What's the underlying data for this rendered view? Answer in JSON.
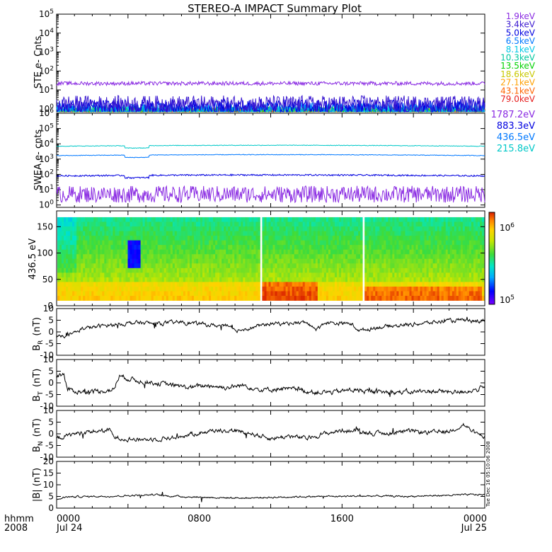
{
  "title": "STEREO-A IMPACT Summary Plot",
  "timestamp": "Tue Dec 16 05:10:06 2008",
  "time_axis": {
    "corner_top": "hhmm",
    "corner_bottom": "2008",
    "ticks": [
      {
        "t": 0,
        "label": "0000",
        "sub": "Jul 24"
      },
      {
        "t": 8,
        "label": "0800",
        "sub": ""
      },
      {
        "t": 16,
        "label": "1600",
        "sub": ""
      },
      {
        "t": 24,
        "label": "0000",
        "sub": "Jul 25"
      }
    ]
  },
  "chart_data": [
    {
      "type": "line",
      "id": "ste",
      "ylabel": "STE e- Cnts",
      "yscale": "log",
      "ylim": [
        0.7,
        100000
      ],
      "y_ticks": [
        {
          "v": 1,
          "exp": "0"
        },
        {
          "v": 10,
          "exp": "1"
        },
        {
          "v": 100,
          "exp": "2"
        },
        {
          "v": 1000,
          "exp": "3"
        },
        {
          "v": 10000,
          "exp": "4"
        },
        {
          "v": 100000,
          "exp": "5"
        }
      ],
      "series": [
        {
          "name": "1.9keV",
          "color": "#8a2be2",
          "level": 22,
          "noise": 0.1
        },
        {
          "name": "3.4keV",
          "color": "#3a18d0",
          "level": 1.8,
          "noise": 0.45
        },
        {
          "name": "5.0keV",
          "color": "#0000e0",
          "level": 1.3,
          "noise": 0.4
        },
        {
          "name": "6.5keV",
          "color": "#0078ff",
          "level": 1.0,
          "noise": 0.35
        },
        {
          "name": "8.1keV",
          "color": "#00c8e6",
          "level": 0.9,
          "noise": 0.3
        },
        {
          "name": "10.3keV",
          "color": "#00c8a0",
          "level": 0.85,
          "noise": 0.25
        },
        {
          "name": "13.5keV",
          "color": "#00d200",
          "level": 0.8,
          "noise": 0.2
        },
        {
          "name": "18.6keV",
          "color": "#c8c800",
          "level": 0.78,
          "noise": 0.2
        },
        {
          "name": "27.1keV",
          "color": "#ffa000",
          "level": 0.76,
          "noise": 0.2
        },
        {
          "name": "43.1keV",
          "color": "#ff6400",
          "level": 0.75,
          "noise": 0.2
        },
        {
          "name": "79.0keV",
          "color": "#e61e1e",
          "level": 0.74,
          "noise": 0.2
        }
      ]
    },
    {
      "type": "line",
      "id": "swea",
      "ylabel": "SWEA e- cnts",
      "yscale": "log",
      "ylim": [
        0.7,
        1000000
      ],
      "y_ticks": [
        {
          "v": 1,
          "exp": "0"
        },
        {
          "v": 10,
          "exp": "1"
        },
        {
          "v": 100,
          "exp": "2"
        },
        {
          "v": 1000,
          "exp": "3"
        },
        {
          "v": 10000,
          "exp": "4"
        },
        {
          "v": 100000,
          "exp": "5"
        },
        {
          "v": 1000000,
          "exp": "6"
        }
      ],
      "series": [
        {
          "name": "1787.2eV",
          "color": "#8a2be2",
          "level": 5,
          "noise": 0.55
        },
        {
          "name": "883.3eV",
          "color": "#0000e0",
          "level": 80,
          "noise": 0.05
        },
        {
          "name": "436.5eV",
          "color": "#0078ff",
          "level": 1700,
          "noise": 0.02
        },
        {
          "name": "215.8eV",
          "color": "#00c8c8",
          "level": 7000,
          "noise": 0.02
        }
      ]
    },
    {
      "type": "heatmap",
      "id": "pad",
      "ylabel": "436.5 eV",
      "ylim": [
        0,
        180
      ],
      "y_ticks": [
        0,
        50,
        100,
        150
      ],
      "colorbar": {
        "min_label_base": "10",
        "min_label_exp": "5",
        "max_label_base": "10",
        "max_label_exp": "6",
        "scale": "log",
        "range": [
          100000,
          1000000
        ]
      }
    },
    {
      "type": "line",
      "id": "br",
      "ylabel_main": "B",
      "ylabel_sub": "R",
      "ylabel_unit": "(nT)",
      "ylim": [
        -10,
        10
      ],
      "y_ticks": [
        -10,
        -5,
        0,
        5,
        10
      ],
      "anchors": [
        [
          0,
          -2
        ],
        [
          0.8,
          -1
        ],
        [
          1.5,
          1.5
        ],
        [
          3,
          3
        ],
        [
          4.5,
          4
        ],
        [
          5.5,
          3.5
        ],
        [
          7,
          4.2
        ],
        [
          8.5,
          3
        ],
        [
          9.5,
          2.5
        ],
        [
          10,
          0.5
        ],
        [
          11,
          2
        ],
        [
          12,
          3.5
        ],
        [
          14,
          4
        ],
        [
          14.6,
          1
        ],
        [
          15,
          4
        ],
        [
          16.5,
          3.5
        ],
        [
          17,
          0.5
        ],
        [
          18,
          2
        ],
        [
          19.5,
          3
        ],
        [
          21,
          4
        ],
        [
          22.5,
          5
        ],
        [
          23.5,
          4.5
        ],
        [
          24,
          5
        ]
      ],
      "noise": 0.8
    },
    {
      "type": "line",
      "id": "bt",
      "ylabel_main": "B",
      "ylabel_sub": "T",
      "ylabel_unit": "(nT)",
      "ylim": [
        -10,
        10
      ],
      "y_ticks": [
        -10,
        -5,
        0,
        5,
        10
      ],
      "anchors": [
        [
          0,
          3
        ],
        [
          0.4,
          4
        ],
        [
          0.6,
          -3
        ],
        [
          1.5,
          -4
        ],
        [
          3.2,
          -3
        ],
        [
          3.5,
          3
        ],
        [
          4.5,
          1
        ],
        [
          5.5,
          0
        ],
        [
          6.5,
          -1
        ],
        [
          7.5,
          -2
        ],
        [
          8.5,
          -1
        ],
        [
          9.5,
          -2
        ],
        [
          10.5,
          -1
        ],
        [
          11.5,
          -3
        ],
        [
          12.5,
          -2.5
        ],
        [
          13.5,
          -3
        ],
        [
          14.5,
          -4
        ],
        [
          15.5,
          -4
        ],
        [
          16.5,
          -3
        ],
        [
          18,
          -4
        ],
        [
          19.5,
          -4
        ],
        [
          21,
          -3.5
        ],
        [
          22.5,
          -4
        ],
        [
          23.5,
          -3
        ],
        [
          24,
          -2
        ]
      ],
      "noise": 1.0
    },
    {
      "type": "line",
      "id": "bn",
      "ylabel_main": "B",
      "ylabel_sub": "N",
      "ylabel_unit": "(nT)",
      "ylim": [
        -10,
        10
      ],
      "y_ticks": [
        -10,
        -5,
        0,
        5,
        10
      ],
      "anchors": [
        [
          0,
          -2
        ],
        [
          1,
          0
        ],
        [
          2,
          1
        ],
        [
          3,
          1.5
        ],
        [
          3.2,
          -1.5
        ],
        [
          4.5,
          -2.5
        ],
        [
          6,
          -2
        ],
        [
          7,
          -1
        ],
        [
          8,
          0.5
        ],
        [
          9,
          1.5
        ],
        [
          10,
          1.5
        ],
        [
          11,
          0
        ],
        [
          12,
          -2
        ],
        [
          13,
          -1
        ],
        [
          14,
          -2
        ],
        [
          15,
          0
        ],
        [
          16,
          1.5
        ],
        [
          17,
          1
        ],
        [
          18,
          0
        ],
        [
          19,
          0.5
        ],
        [
          20,
          1
        ],
        [
          21,
          0.5
        ],
        [
          22,
          1
        ],
        [
          22.8,
          4
        ],
        [
          23.5,
          0
        ],
        [
          24,
          -1
        ]
      ],
      "noise": 0.9
    },
    {
      "type": "line",
      "id": "bmag",
      "ylabel": "|B| (nT)",
      "ylim": [
        0,
        20
      ],
      "y_ticks": [
        0,
        5,
        10,
        15,
        20
      ],
      "anchors": [
        [
          0,
          3.5
        ],
        [
          0.5,
          4.8
        ],
        [
          2,
          5
        ],
        [
          3.5,
          5.2
        ],
        [
          4.5,
          5.5
        ],
        [
          5.5,
          5.8
        ],
        [
          6,
          5.3
        ],
        [
          7.5,
          4.8
        ],
        [
          9,
          4.5
        ],
        [
          10.5,
          4.3
        ],
        [
          12,
          4.6
        ],
        [
          13.5,
          4.9
        ],
        [
          15,
          5
        ],
        [
          16.5,
          5.1
        ],
        [
          18,
          5.2
        ],
        [
          19.5,
          5
        ],
        [
          21,
          5.3
        ],
        [
          22.5,
          5.6
        ],
        [
          23.5,
          5.8
        ],
        [
          24,
          5.8
        ]
      ],
      "noise": 0.35
    }
  ]
}
